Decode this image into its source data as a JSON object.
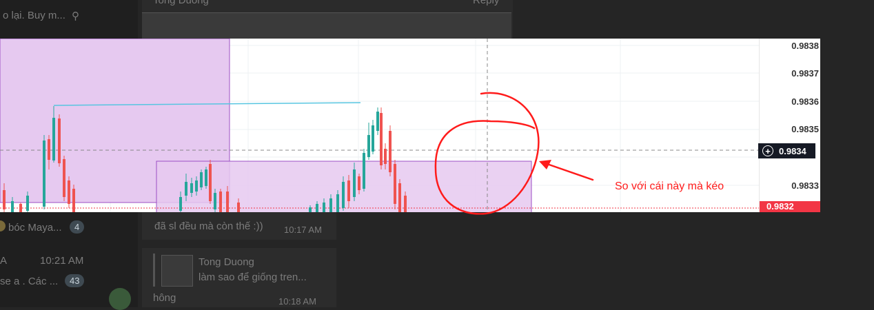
{
  "background_chat": {
    "top_left": "o lại. Buy m...",
    "top_center_name": "Tong Duong",
    "top_right": "Reply",
    "chat_row_1_name": "bóc Maya...",
    "chat_row_1_count": "4",
    "chat_row_2_time": "10:21 AM",
    "chat_row_2_prefix": "A",
    "chat_row_3": "se a . Các ...",
    "chat_row_3_count": "43",
    "bottom_left_text": "hông",
    "message_text": "đã sl đều mà còn thế :))",
    "message_time": "10:17 AM",
    "reply_name": "Tong Duong",
    "reply_text": "làm sao để giống tren...",
    "bottom_time": "10:18 AM"
  },
  "chart": {
    "price_ticks": [
      "0.9838",
      "0.9837",
      "0.9836",
      "0.9835",
      "0.9834",
      "0.9833",
      "0.9832"
    ],
    "crosshair_price": "0.9834",
    "last_price": "0.9832",
    "annotation_text": "So với cái này mà kéo",
    "colors": {
      "up": "#26a69a",
      "down": "#ef5350",
      "zone": "#e1c4ee",
      "zone_border": "#9c4fc4",
      "trendline": "#56c5e0",
      "annotation": "#ff1b1b"
    }
  }
}
